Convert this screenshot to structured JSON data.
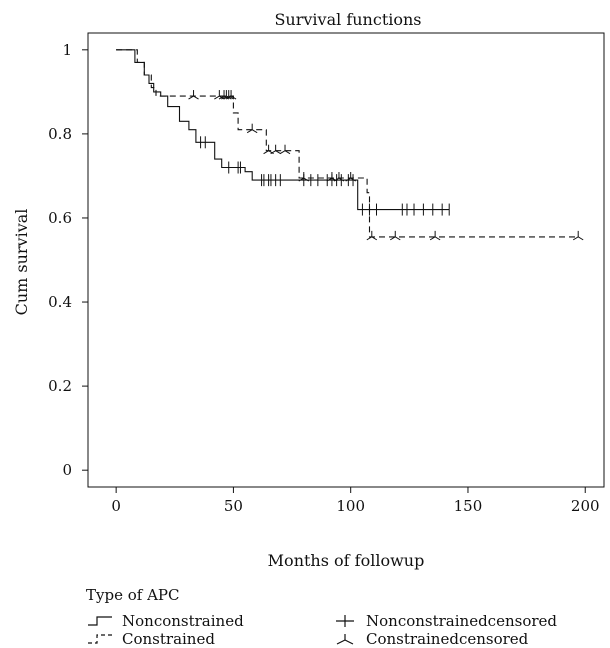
{
  "chart_data": {
    "type": "line",
    "title": "Survival functions",
    "xlabel": "Months of followup",
    "ylabel": "Cum survival",
    "xlim": [
      -12,
      208
    ],
    "ylim": [
      -0.04,
      1.04
    ],
    "x_ticks": [
      0,
      50,
      100,
      150,
      200
    ],
    "y_ticks": [
      0,
      0.2,
      0.4,
      0.6,
      0.8,
      1
    ],
    "x_tick_labels": [
      "0",
      "50",
      "100",
      "150",
      "200"
    ],
    "y_tick_labels": [
      "0",
      "0.2",
      "0.4",
      "0.6",
      "0.8",
      "1"
    ],
    "grid": false,
    "legend_placement": "bottom",
    "series": [
      {
        "name": "Nonconstrained",
        "style": "solid",
        "steps": [
          [
            0,
            1.0
          ],
          [
            8,
            0.97
          ],
          [
            12,
            0.94
          ],
          [
            14,
            0.92
          ],
          [
            16,
            0.9
          ],
          [
            19,
            0.89
          ],
          [
            22,
            0.865
          ],
          [
            27,
            0.83
          ],
          [
            31,
            0.81
          ],
          [
            34,
            0.78
          ],
          [
            42,
            0.74
          ],
          [
            45,
            0.72
          ],
          [
            55,
            0.71
          ],
          [
            58,
            0.69
          ],
          [
            103,
            0.62
          ],
          [
            142,
            0.62
          ]
        ],
        "censored": [
          36,
          38,
          48,
          52,
          53,
          62,
          63,
          65,
          66,
          68,
          70,
          80,
          83,
          86,
          90,
          92,
          94,
          96,
          99,
          101,
          105,
          108,
          111,
          122,
          124,
          127,
          131,
          135,
          139,
          142
        ]
      },
      {
        "name": "Constrained",
        "style": "dashed",
        "steps": [
          [
            0,
            1.0
          ],
          [
            9,
            0.97
          ],
          [
            12,
            0.94
          ],
          [
            15,
            0.91
          ],
          [
            17,
            0.89
          ],
          [
            50,
            0.85
          ],
          [
            52,
            0.81
          ],
          [
            64,
            0.76
          ],
          [
            78,
            0.695
          ],
          [
            107,
            0.66
          ],
          [
            108,
            0.555
          ],
          [
            197,
            0.555
          ]
        ],
        "censored": [
          33,
          44,
          46,
          47,
          48,
          49,
          58,
          65,
          68,
          72,
          80,
          92,
          95,
          100,
          109,
          119,
          136,
          197
        ]
      }
    ]
  },
  "legend": {
    "title": "Type of APC",
    "items": [
      {
        "label": "Nonconstrained"
      },
      {
        "label": "Constrained"
      },
      {
        "label": "Nonconstrainedcensored"
      },
      {
        "label": "Constrainedcensored"
      }
    ]
  }
}
